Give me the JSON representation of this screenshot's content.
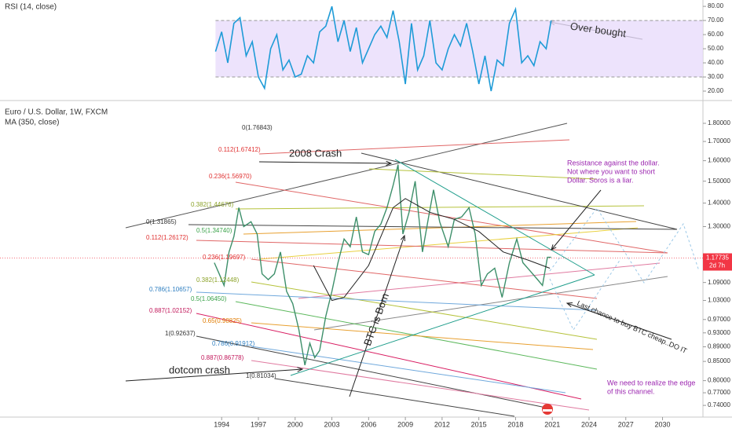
{
  "chart_data": [
    {
      "type": "line",
      "title": "RSI (14, close)",
      "color": "#1e9bd7",
      "xlim": [
        1975.9,
        2033.3
      ],
      "ylim": [
        15,
        84.5
      ],
      "yticks": [
        {
          "value": 20,
          "label": "20.00"
        },
        {
          "value": 30,
          "label": "30.00"
        },
        {
          "value": 40,
          "label": "40.00"
        },
        {
          "value": 50,
          "label": "50.00"
        },
        {
          "value": 60,
          "label": "60.00"
        },
        {
          "value": 70,
          "label": "70.00"
        },
        {
          "value": 80,
          "label": "80.00"
        }
      ],
      "band": [
        30,
        70
      ],
      "band_color": "#e9dcfb",
      "x": [
        1993.5,
        1994,
        1994.5,
        1995,
        1995.5,
        1996,
        1996.5,
        1997,
        1997.5,
        1998,
        1998.5,
        1999,
        1999.5,
        2000,
        2000.5,
        2001,
        2001.5,
        2002,
        2002.5,
        2003,
        2003.5,
        2004,
        2004.5,
        2005,
        2005.5,
        2006,
        2006.5,
        2007,
        2007.5,
        2008,
        2008.5,
        2009,
        2009.5,
        2010,
        2010.5,
        2011,
        2011.5,
        2012,
        2012.5,
        2013,
        2013.5,
        2014,
        2014.5,
        2015,
        2015.5,
        2016,
        2016.5,
        2017,
        2017.5,
        2018,
        2018.5,
        2019,
        2019.5,
        2020,
        2020.5,
        2020.9
      ],
      "values": [
        48,
        62,
        40,
        68,
        72,
        45,
        55,
        30,
        22,
        50,
        60,
        35,
        42,
        30,
        32,
        45,
        40,
        62,
        66,
        80,
        55,
        70,
        48,
        65,
        40,
        50,
        60,
        66,
        58,
        77,
        55,
        25,
        68,
        35,
        45,
        70,
        40,
        35,
        50,
        60,
        52,
        68,
        48,
        25,
        45,
        20,
        42,
        38,
        68,
        78,
        40,
        45,
        38,
        55,
        50,
        70
      ],
      "annotation": "Over bought"
    },
    {
      "type": "line",
      "title": "Euro / U.S. Dollar, 1W, FXCM",
      "log_scale": true,
      "xlim": [
        1975.9,
        2033.3
      ],
      "ylim": [
        0.715,
        1.915
      ],
      "xticks": [
        1994,
        1997,
        2000,
        2003,
        2006,
        2009,
        2012,
        2015,
        2018,
        2021,
        2024,
        2027,
        2030
      ],
      "yticks": [
        {
          "value": 0.74,
          "label": "0.74000"
        },
        {
          "value": 0.77,
          "label": "0.77000"
        },
        {
          "value": 0.8,
          "label": "0.80000"
        },
        {
          "value": 0.85,
          "label": "0.85000"
        },
        {
          "value": 0.89,
          "label": "0.89000"
        },
        {
          "value": 0.93,
          "label": "0.93000"
        },
        {
          "value": 0.97,
          "label": "0.97000"
        },
        {
          "value": 1.03,
          "label": "1.03000"
        },
        {
          "value": 1.09,
          "label": "1.09000"
        },
        {
          "value": 1.3,
          "label": "1.30000"
        },
        {
          "value": 1.4,
          "label": "1.40000"
        },
        {
          "value": 1.5,
          "label": "1.50000"
        },
        {
          "value": 1.6,
          "label": "1.60000"
        },
        {
          "value": 1.7,
          "label": "1.70000"
        },
        {
          "value": 1.8,
          "label": "1.80000"
        }
      ],
      "series": [
        {
          "color": "#3d8f6a",
          "x": [
            1993.4,
            1993.8,
            1994.2,
            1994.6,
            1995.0,
            1995.4,
            1995.8,
            1996.4,
            1996.9,
            1997.3,
            1997.8,
            1998.3,
            1998.8,
            1999.3,
            1999.8,
            2000.3,
            2000.8,
            2001.2,
            2001.6,
            2002.0,
            2002.5,
            2003.0,
            2003.5,
            2004.0,
            2004.5,
            2005.0,
            2005.5,
            2006.0,
            2006.5,
            2007.0,
            2007.5,
            2008.0,
            2008.4,
            2008.8,
            2009.3,
            2009.8,
            2010.4,
            2010.9,
            2011.3,
            2011.8,
            2012.5,
            2013.0,
            2013.6,
            2014.2,
            2014.7,
            2015.2,
            2015.7,
            2016.3,
            2016.9,
            2017.5,
            2018.1,
            2018.6,
            2019.2,
            2019.8,
            2020.2,
            2020.6,
            2020.9
          ],
          "values": [
            1.16,
            1.12,
            1.08,
            1.2,
            1.26,
            1.38,
            1.3,
            1.32,
            1.27,
            1.12,
            1.1,
            1.12,
            1.2,
            1.06,
            1.02,
            0.94,
            0.84,
            0.9,
            0.86,
            0.88,
            0.98,
            1.06,
            1.16,
            1.25,
            1.22,
            1.34,
            1.2,
            1.19,
            1.28,
            1.31,
            1.38,
            1.48,
            1.58,
            1.27,
            1.36,
            1.5,
            1.2,
            1.34,
            1.46,
            1.32,
            1.22,
            1.33,
            1.34,
            1.38,
            1.27,
            1.08,
            1.12,
            1.14,
            1.04,
            1.16,
            1.25,
            1.16,
            1.13,
            1.1,
            1.08,
            1.18,
            1.18
          ]
        },
        {
          "name": "MA (350, close)",
          "color": "#222222",
          "x": [
            2001.5,
            2003,
            2004,
            2006,
            2008,
            2009,
            2011,
            2013,
            2015,
            2017,
            2019,
            2020.8
          ],
          "values": [
            1.15,
            1.03,
            1.04,
            1.15,
            1.38,
            1.42,
            1.36,
            1.33,
            1.28,
            1.2,
            1.17,
            1.14
          ]
        }
      ],
      "last_price": {
        "value": 1.17735,
        "label": "1.17735"
      },
      "last_price_color": "#f23645",
      "countdown": "2d 7h",
      "fib_labels": [
        {
          "text": "0(1.76843)",
          "color": "#333333"
        },
        {
          "text": "0.112(1.67412)",
          "color": "#e03131"
        },
        {
          "text": "0.236(1.56970)",
          "color": "#e03131"
        },
        {
          "text": "0.382(1.44676)",
          "color": "#8ca32a"
        },
        {
          "text": "0.5(1.34740)",
          "color": "#3aa34a"
        },
        {
          "text": "0(1.31865)",
          "color": "#333333"
        },
        {
          "text": "0.112(1.26172)",
          "color": "#e03131"
        },
        {
          "text": "0.236(1.19697)",
          "color": "#e03131"
        },
        {
          "text": "0.382(1.12448)",
          "color": "#8ca32a"
        },
        {
          "text": "0.786(1.10657)",
          "color": "#2f7fc1"
        },
        {
          "text": "0.5(1.06450)",
          "color": "#3aa34a"
        },
        {
          "text": "0.887(1.02152)",
          "color": "#c2185b"
        },
        {
          "text": "0.65(0.98825)",
          "color": "#e07b00"
        },
        {
          "text": "1(0.92637)",
          "color": "#333333"
        },
        {
          "text": "0.786(0.91912)",
          "color": "#2f7fc1"
        },
        {
          "text": "0.887(0.86778)",
          "color": "#c2185b"
        },
        {
          "text": "1(0.81034)",
          "color": "#333333"
        }
      ],
      "annotations": [
        {
          "lines": [
            "2008 Crash"
          ],
          "color": "#222222"
        },
        {
          "lines": [
            "BTC is Born"
          ],
          "color": "#222222"
        },
        {
          "lines": [
            "dotcom crash"
          ],
          "color": "#222222"
        },
        {
          "lines": [
            "Resistance against the dollar.",
            "Not where you want to short",
            "Dollar. Soros is a liar."
          ],
          "color": "#9c27b0"
        },
        {
          "lines": [
            "Last chance to buy BTC cheap..DO IT"
          ],
          "color": "#222222"
        },
        {
          "lines": [
            "We need to realize the edge",
            "of this channel."
          ],
          "color": "#9c27b0"
        }
      ]
    }
  ]
}
